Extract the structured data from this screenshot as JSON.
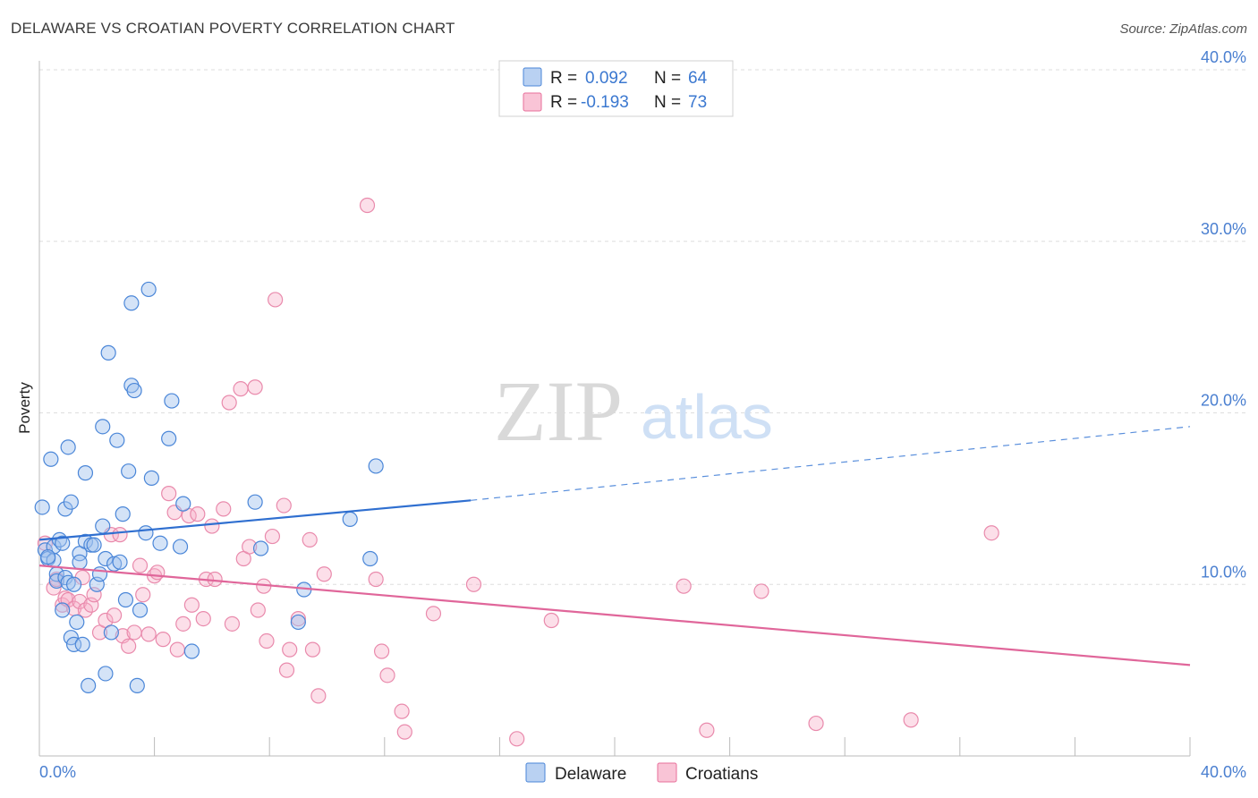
{
  "title": "DELAWARE VS CROATIAN POVERTY CORRELATION CHART",
  "source": "Source: ZipAtlas.com",
  "watermark": {
    "zip": "ZIP",
    "atlas": "atlas"
  },
  "chart_data": {
    "type": "scatter",
    "ylabel": "Poverty",
    "xlim": [
      0,
      40
    ],
    "ylim": [
      0,
      40
    ],
    "x_tick_labels": [
      "0.0%",
      "40.0%"
    ],
    "y_ticks": [
      10,
      20,
      30,
      40
    ],
    "y_tick_labels": [
      "10.0%",
      "20.0%",
      "30.0%",
      "40.0%"
    ],
    "grid": true,
    "colors": {
      "delaware": "#4a86d8",
      "croatians": "#e86f9b"
    },
    "legend_stats": [
      {
        "r_label": "R =",
        "r_value": "0.092",
        "n_label": "N =",
        "n_value": "64"
      },
      {
        "r_label": "R =",
        "r_value": "-0.193",
        "n_label": "N =",
        "n_value": "73"
      }
    ],
    "series": [
      {
        "name": "Delaware",
        "trend": {
          "x0": 0,
          "y0": 12.6,
          "x1": 15,
          "y1": 14.9,
          "dash_to_x": 40,
          "dash_to_y": 19.2
        },
        "points": [
          [
            0.1,
            14.5
          ],
          [
            0.2,
            12.0
          ],
          [
            0.3,
            11.5
          ],
          [
            0.4,
            17.3
          ],
          [
            0.5,
            11.4
          ],
          [
            0.5,
            12.2
          ],
          [
            0.6,
            10.6
          ],
          [
            0.6,
            10.2
          ],
          [
            0.7,
            12.6
          ],
          [
            0.8,
            12.4
          ],
          [
            0.8,
            8.5
          ],
          [
            0.9,
            14.4
          ],
          [
            0.9,
            10.4
          ],
          [
            1.0,
            18.0
          ],
          [
            1.0,
            10.1
          ],
          [
            1.1,
            14.8
          ],
          [
            1.1,
            6.9
          ],
          [
            1.2,
            10.0
          ],
          [
            1.2,
            6.5
          ],
          [
            1.4,
            11.8
          ],
          [
            1.4,
            11.3
          ],
          [
            1.5,
            6.5
          ],
          [
            1.6,
            12.5
          ],
          [
            1.6,
            16.5
          ],
          [
            1.7,
            4.1
          ],
          [
            1.8,
            12.3
          ],
          [
            1.9,
            12.3
          ],
          [
            2.0,
            10.0
          ],
          [
            2.1,
            10.6
          ],
          [
            2.2,
            13.4
          ],
          [
            2.2,
            19.2
          ],
          [
            2.3,
            11.5
          ],
          [
            2.3,
            4.8
          ],
          [
            2.4,
            23.5
          ],
          [
            2.6,
            11.2
          ],
          [
            2.7,
            18.4
          ],
          [
            2.8,
            11.3
          ],
          [
            2.9,
            14.1
          ],
          [
            3.1,
            16.6
          ],
          [
            3.2,
            26.4
          ],
          [
            3.2,
            21.6
          ],
          [
            3.3,
            21.3
          ],
          [
            3.4,
            4.1
          ],
          [
            3.5,
            8.5
          ],
          [
            3.7,
            13.0
          ],
          [
            3.8,
            27.2
          ],
          [
            3.9,
            16.2
          ],
          [
            4.5,
            18.5
          ],
          [
            4.6,
            20.7
          ],
          [
            4.9,
            12.2
          ],
          [
            5.0,
            14.7
          ],
          [
            5.3,
            6.1
          ],
          [
            7.5,
            14.8
          ],
          [
            7.7,
            12.1
          ],
          [
            9.0,
            7.8
          ],
          [
            9.2,
            9.7
          ],
          [
            10.8,
            13.8
          ],
          [
            11.5,
            11.5
          ],
          [
            11.7,
            16.9
          ],
          [
            2.5,
            7.2
          ],
          [
            1.3,
            7.8
          ],
          [
            3.0,
            9.1
          ],
          [
            4.2,
            12.4
          ],
          [
            0.3,
            11.6
          ]
        ]
      },
      {
        "name": "Croatians",
        "trend": {
          "x0": 0,
          "y0": 11.1,
          "x1": 40,
          "y1": 5.3
        },
        "points": [
          [
            0.2,
            12.4
          ],
          [
            0.5,
            9.8
          ],
          [
            0.6,
            10.3
          ],
          [
            0.8,
            8.8
          ],
          [
            0.9,
            9.2
          ],
          [
            1.0,
            9.1
          ],
          [
            1.2,
            8.6
          ],
          [
            1.4,
            9.0
          ],
          [
            1.5,
            10.4
          ],
          [
            1.6,
            8.5
          ],
          [
            1.8,
            8.8
          ],
          [
            1.9,
            9.4
          ],
          [
            2.1,
            7.2
          ],
          [
            2.3,
            7.9
          ],
          [
            2.5,
            12.9
          ],
          [
            2.6,
            8.2
          ],
          [
            2.8,
            12.9
          ],
          [
            2.9,
            7.0
          ],
          [
            3.1,
            6.4
          ],
          [
            3.3,
            7.2
          ],
          [
            3.5,
            11.1
          ],
          [
            3.6,
            9.4
          ],
          [
            3.8,
            7.1
          ],
          [
            4.0,
            10.5
          ],
          [
            4.1,
            10.7
          ],
          [
            4.3,
            6.8
          ],
          [
            4.5,
            15.3
          ],
          [
            4.7,
            14.2
          ],
          [
            4.8,
            6.2
          ],
          [
            5.0,
            7.7
          ],
          [
            5.2,
            14.0
          ],
          [
            5.3,
            8.8
          ],
          [
            5.5,
            14.1
          ],
          [
            5.7,
            8.0
          ],
          [
            5.8,
            10.3
          ],
          [
            6.0,
            13.4
          ],
          [
            6.1,
            10.3
          ],
          [
            6.4,
            14.4
          ],
          [
            6.6,
            20.6
          ],
          [
            6.7,
            7.7
          ],
          [
            7.0,
            21.4
          ],
          [
            7.1,
            11.5
          ],
          [
            7.3,
            12.2
          ],
          [
            7.5,
            21.5
          ],
          [
            7.6,
            8.5
          ],
          [
            7.8,
            9.9
          ],
          [
            7.9,
            6.7
          ],
          [
            8.1,
            12.8
          ],
          [
            8.2,
            26.6
          ],
          [
            8.5,
            14.6
          ],
          [
            8.6,
            5.0
          ],
          [
            8.7,
            6.2
          ],
          [
            9.0,
            8.0
          ],
          [
            9.4,
            12.6
          ],
          [
            9.5,
            6.2
          ],
          [
            9.7,
            3.5
          ],
          [
            9.9,
            10.6
          ],
          [
            11.7,
            10.3
          ],
          [
            11.9,
            6.1
          ],
          [
            12.1,
            4.7
          ],
          [
            11.4,
            32.1
          ],
          [
            12.6,
            2.6
          ],
          [
            12.7,
            1.4
          ],
          [
            13.7,
            8.3
          ],
          [
            15.1,
            10.0
          ],
          [
            16.6,
            1.0
          ],
          [
            17.8,
            7.9
          ],
          [
            22.4,
            9.9
          ],
          [
            23.2,
            1.5
          ],
          [
            25.1,
            9.6
          ],
          [
            27.0,
            1.9
          ],
          [
            30.3,
            2.1
          ],
          [
            33.1,
            13.0
          ]
        ]
      }
    ]
  }
}
